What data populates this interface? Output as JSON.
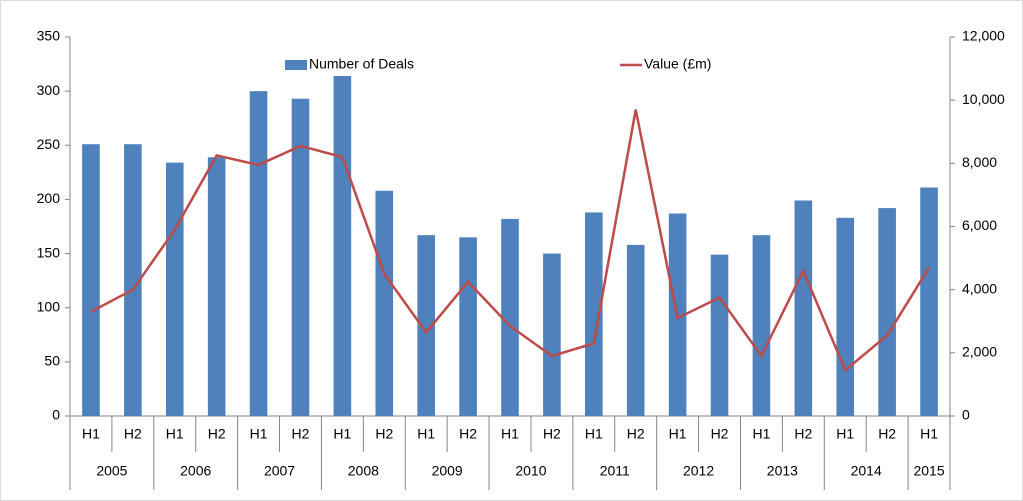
{
  "chart_data": {
    "type": "bar",
    "groups": [
      {
        "name": "2005",
        "categories": [
          "H1",
          "H2"
        ]
      },
      {
        "name": "2006",
        "categories": [
          "H1",
          "H2"
        ]
      },
      {
        "name": "2007",
        "categories": [
          "H1",
          "H2"
        ]
      },
      {
        "name": "2008",
        "categories": [
          "H1",
          "H2"
        ]
      },
      {
        "name": "2009",
        "categories": [
          "H1",
          "H2"
        ]
      },
      {
        "name": "2010",
        "categories": [
          "H1",
          "H2"
        ]
      },
      {
        "name": "2011",
        "categories": [
          "H1",
          "H2"
        ]
      },
      {
        "name": "2012",
        "categories": [
          "H1",
          "H2"
        ]
      },
      {
        "name": "2013",
        "categories": [
          "H1",
          "H2"
        ]
      },
      {
        "name": "2014",
        "categories": [
          "H1",
          "H2"
        ]
      },
      {
        "name": "2015",
        "categories": [
          "H1"
        ]
      }
    ],
    "series": [
      {
        "name": "Number of Deals",
        "type": "bar",
        "color": "#4f81bd",
        "values": [
          251,
          251,
          234,
          239,
          300,
          293,
          314,
          208,
          167,
          165,
          182,
          150,
          188,
          158,
          187,
          149,
          167,
          199,
          183,
          192,
          211
        ]
      },
      {
        "name": "Value (£m)",
        "type": "line",
        "axis": "y2",
        "color": "#be4b48",
        "values": [
          3300,
          4000,
          5900,
          8250,
          7950,
          8550,
          8200,
          4500,
          2650,
          4250,
          2850,
          1900,
          2300,
          9700,
          3100,
          3750,
          1900,
          4600,
          1450,
          2550,
          4700
        ]
      }
    ],
    "ylim": [
      0,
      350
    ],
    "yticks": [
      0,
      50,
      100,
      150,
      200,
      250,
      300,
      350
    ],
    "y2lim": [
      0,
      12000
    ],
    "y2ticks": [
      0,
      {
        "value": 2000,
        "label": "2,000"
      },
      {
        "value": 4000,
        "label": "4,000"
      },
      {
        "value": 6000,
        "label": "6,000"
      },
      {
        "value": 8000,
        "label": "8,000"
      },
      {
        "value": 10000,
        "label": "10,000"
      },
      {
        "value": 12000,
        "label": "12,000"
      }
    ],
    "legend": "top"
  }
}
